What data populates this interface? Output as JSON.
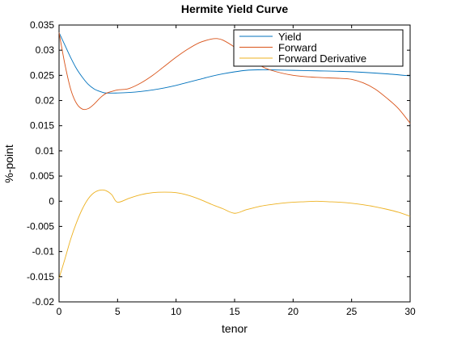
{
  "chart_data": {
    "type": "line",
    "title": "Hermite Yield Curve",
    "xlabel": "tenor",
    "ylabel": "%-point",
    "xlim": [
      0,
      30
    ],
    "ylim": [
      -0.02,
      0.035
    ],
    "xticks": [
      0,
      5,
      10,
      15,
      20,
      25,
      30
    ],
    "xtick_labels": [
      "0",
      "5",
      "10",
      "15",
      "20",
      "25",
      "30"
    ],
    "yticks": [
      -0.02,
      -0.015,
      -0.01,
      -0.005,
      0,
      0.005,
      0.01,
      0.015,
      0.02,
      0.025,
      0.03,
      0.035
    ],
    "ytick_labels": [
      "-0.02",
      "-0.015",
      "-0.01",
      "-0.005",
      "0",
      "0.005",
      "0.01",
      "0.015",
      "0.02",
      "0.025",
      "0.03",
      "0.035"
    ],
    "grid": false,
    "legend_position": "top-right",
    "series": [
      {
        "name": "Yield",
        "color": "#0072bd",
        "x": [
          0,
          0.5,
          1,
          1.5,
          2,
          2.5,
          3,
          3.5,
          4,
          5,
          6,
          7,
          8,
          9,
          10,
          11,
          12,
          13,
          14,
          15,
          16,
          17,
          18,
          20,
          22,
          24,
          26,
          28,
          30
        ],
        "y": [
          0.0335,
          0.031,
          0.0285,
          0.0263,
          0.0246,
          0.0232,
          0.0223,
          0.0218,
          0.0215,
          0.0215,
          0.0216,
          0.0218,
          0.0221,
          0.0225,
          0.023,
          0.0236,
          0.0242,
          0.0248,
          0.0253,
          0.0257,
          0.026,
          0.0261,
          0.0261,
          0.026,
          0.0259,
          0.0258,
          0.0256,
          0.0253,
          0.0249
        ]
      },
      {
        "name": "Forward",
        "color": "#d95319",
        "x": [
          0,
          0.5,
          1,
          1.5,
          2,
          2.5,
          3,
          3.5,
          4,
          4.5,
          5,
          5.5,
          6,
          7,
          8,
          9,
          10,
          11,
          12,
          13,
          13.5,
          14,
          15,
          16,
          17,
          18,
          20,
          22,
          24,
          25,
          26,
          27,
          28,
          29,
          30
        ],
        "y": [
          0.0335,
          0.0272,
          0.0222,
          0.0194,
          0.0183,
          0.0184,
          0.0193,
          0.0205,
          0.0214,
          0.0218,
          0.0221,
          0.0222,
          0.0224,
          0.0235,
          0.025,
          0.0268,
          0.0286,
          0.0302,
          0.0315,
          0.0322,
          0.0323,
          0.032,
          0.0306,
          0.0288,
          0.0272,
          0.0261,
          0.025,
          0.0246,
          0.0244,
          0.0242,
          0.0235,
          0.0223,
          0.0205,
          0.0184,
          0.0155
        ]
      },
      {
        "name": "Forward Derivative",
        "color": "#edb120",
        "x": [
          0,
          0.5,
          1,
          1.5,
          2,
          2.5,
          3,
          3.5,
          4,
          4.5,
          5,
          6,
          7,
          8,
          9,
          10,
          11,
          12,
          13,
          14,
          15,
          16,
          17,
          18,
          19,
          20,
          21,
          22,
          23,
          24,
          25,
          26,
          27,
          28,
          29,
          30
        ],
        "y": [
          -0.0153,
          -0.0115,
          -0.0075,
          -0.0042,
          -0.0015,
          0.0005,
          0.0017,
          0.0022,
          0.0021,
          0.0013,
          -0.0002,
          0.0006,
          0.0013,
          0.0017,
          0.0018,
          0.0017,
          0.0012,
          0.0004,
          -0.0006,
          -0.0015,
          -0.0024,
          -0.0017,
          -0.0011,
          -0.0007,
          -0.0004,
          -0.0002,
          -0.0001,
          0.0,
          -0.0001,
          -0.0002,
          -0.0004,
          -0.0007,
          -0.0011,
          -0.0016,
          -0.0022,
          -0.003
        ]
      }
    ]
  }
}
